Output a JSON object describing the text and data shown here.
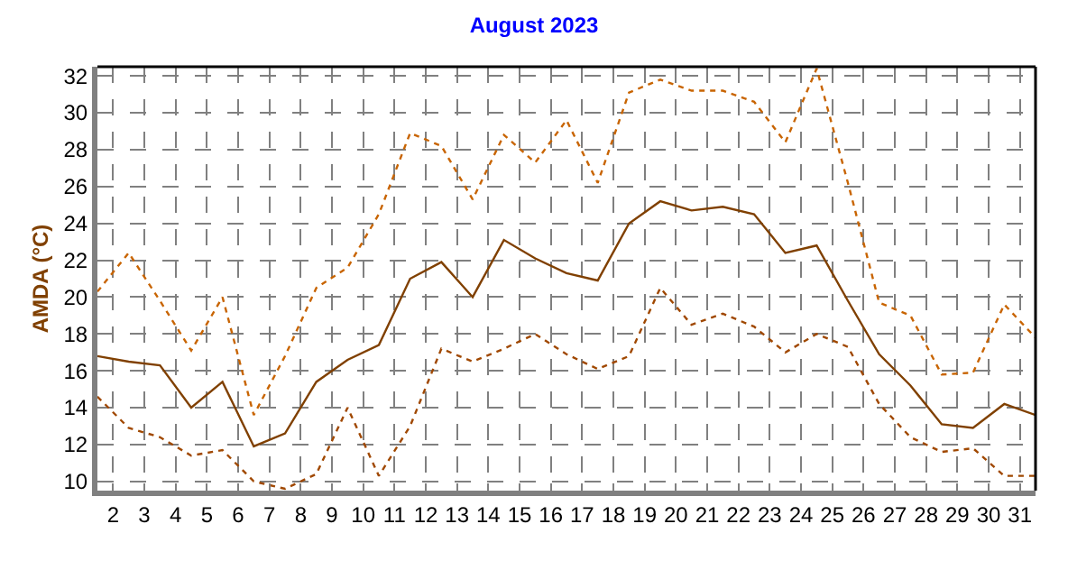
{
  "chart_data": {
    "type": "line",
    "title": "August 2023",
    "ylabel": "AMDA (°C)",
    "x": [
      1.5,
      2.5,
      3.5,
      4.5,
      5.5,
      6.5,
      7.5,
      8.5,
      9.5,
      10.5,
      11.5,
      12.5,
      13.5,
      14.5,
      15.5,
      16.5,
      17.5,
      18.5,
      19.5,
      20.5,
      21.5,
      22.5,
      23.5,
      24.5,
      25.5,
      26.5,
      27.5,
      28.5,
      29.5,
      30.5,
      31.5
    ],
    "series": [
      {
        "color": "#c86400",
        "line_style": "dotted",
        "values": [
          20.3,
          22.4,
          19.8,
          17.1,
          20.0,
          13.6,
          16.8,
          20.5,
          21.6,
          24.5,
          28.9,
          28.2,
          25.3,
          28.8,
          27.3,
          29.6,
          26.2,
          31.1,
          31.8,
          31.2,
          31.2,
          30.6,
          28.4,
          32.4,
          26.2,
          19.7,
          19.0,
          15.8,
          15.9,
          19.6,
          17.8
        ]
      },
      {
        "color": "#804000",
        "line_style": "solid",
        "values": [
          16.8,
          16.5,
          16.3,
          14.0,
          15.4,
          11.9,
          12.6,
          15.4,
          16.6,
          17.4,
          21.0,
          21.9,
          20.0,
          23.1,
          22.1,
          21.3,
          20.9,
          24.0,
          25.2,
          24.7,
          24.9,
          24.5,
          22.4,
          22.8,
          19.8,
          16.9,
          15.2,
          13.1,
          12.9,
          14.2,
          13.6
        ]
      },
      {
        "color": "#a04800",
        "line_style": "dotted",
        "values": [
          14.6,
          12.9,
          12.4,
          11.4,
          11.7,
          10.0,
          9.6,
          10.4,
          14.0,
          10.3,
          13.0,
          17.2,
          16.5,
          17.2,
          18.0,
          16.9,
          16.1,
          16.8,
          20.5,
          18.5,
          19.1,
          18.4,
          17.0,
          18.0,
          17.3,
          14.2,
          12.4,
          11.6,
          11.8,
          10.3,
          10.3
        ]
      }
    ],
    "xlim": [
      1.5,
      31.5
    ],
    "xticks": [
      2,
      3,
      4,
      5,
      6,
      7,
      8,
      9,
      10,
      11,
      12,
      13,
      14,
      15,
      16,
      17,
      18,
      19,
      20,
      21,
      22,
      23,
      24,
      25,
      26,
      27,
      28,
      29,
      30,
      31
    ],
    "ylim": [
      9.5,
      32.5
    ],
    "yticks": [
      10,
      12,
      14,
      16,
      18,
      20,
      22,
      24,
      26,
      28,
      30,
      32
    ],
    "grid": true,
    "marker": "none"
  }
}
